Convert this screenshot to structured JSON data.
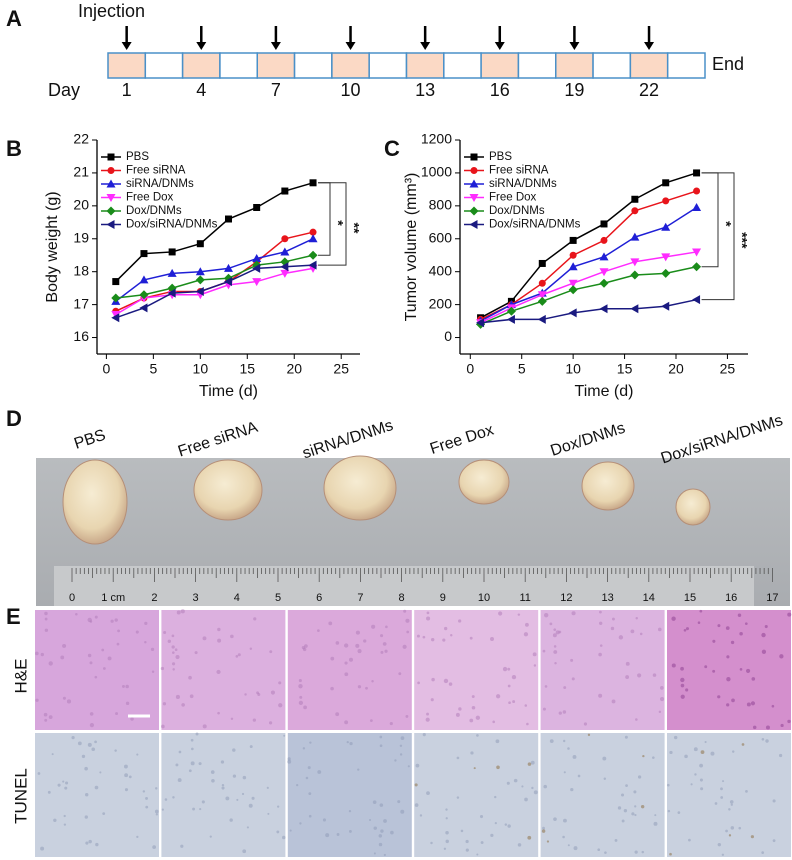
{
  "panel_labels": [
    "A",
    "B",
    "C",
    "D",
    "E"
  ],
  "timeline": {
    "injection_label": "Injection",
    "day_label": "Day",
    "end_label": "End",
    "days": [
      1,
      4,
      7,
      10,
      13,
      16,
      19,
      22
    ]
  },
  "chart_data": [
    {
      "type": "line",
      "x_label": "Time (d)",
      "y_label": "Body weight (g)",
      "x": [
        1,
        4,
        7,
        10,
        13,
        16,
        19,
        22
      ],
      "xlim": [
        -1,
        27
      ],
      "xticks": [
        0,
        5,
        10,
        15,
        20,
        25
      ],
      "ylim": [
        15.5,
        22
      ],
      "yticks": [
        16,
        17,
        18,
        19,
        20,
        21,
        22
      ],
      "annotations": [
        "*",
        "**"
      ],
      "series": [
        {
          "name": "PBS",
          "color": "#000000",
          "marker": "square",
          "values": [
            17.7,
            18.55,
            18.6,
            18.85,
            19.6,
            19.95,
            20.45,
            20.7
          ]
        },
        {
          "name": "Free siRNA",
          "color": "#e8141b",
          "marker": "circle",
          "values": [
            16.8,
            17.2,
            17.4,
            17.4,
            17.7,
            18.3,
            19.0,
            19.2
          ]
        },
        {
          "name": "siRNA/DNMs",
          "color": "#1f1fd6",
          "marker": "triangle-up",
          "values": [
            17.1,
            17.75,
            17.95,
            18.0,
            18.1,
            18.4,
            18.6,
            19.0
          ]
        },
        {
          "name": "Free Dox",
          "color": "#ff2bff",
          "marker": "triangle-down",
          "values": [
            16.7,
            17.2,
            17.3,
            17.3,
            17.6,
            17.7,
            17.95,
            18.1
          ]
        },
        {
          "name": "Dox/DNMs",
          "color": "#1a8c1a",
          "marker": "diamond",
          "values": [
            17.2,
            17.3,
            17.5,
            17.75,
            17.8,
            18.2,
            18.3,
            18.5
          ]
        },
        {
          "name": "Dox/siRNA/DNMs",
          "color": "#1a1a80",
          "marker": "triangle-left",
          "values": [
            16.6,
            16.9,
            17.35,
            17.4,
            17.7,
            18.1,
            18.15,
            18.2
          ]
        }
      ]
    },
    {
      "type": "line",
      "x_label": "Time (d)",
      "y_label": "Tumor volume (mm³)",
      "x": [
        1,
        4,
        7,
        10,
        13,
        16,
        19,
        22
      ],
      "xlim": [
        -1,
        27
      ],
      "xticks": [
        0,
        5,
        10,
        15,
        20,
        25
      ],
      "ylim": [
        -100,
        1200
      ],
      "yticks": [
        0,
        200,
        400,
        600,
        800,
        1000,
        1200
      ],
      "annotations": [
        "*",
        "***"
      ],
      "series": [
        {
          "name": "PBS",
          "color": "#000000",
          "marker": "square",
          "values": [
            120,
            220,
            450,
            590,
            690,
            840,
            940,
            1000
          ]
        },
        {
          "name": "Free siRNA",
          "color": "#e8141b",
          "marker": "circle",
          "values": [
            110,
            200,
            330,
            500,
            590,
            770,
            830,
            890
          ]
        },
        {
          "name": "siRNA/DNMs",
          "color": "#1f1fd6",
          "marker": "triangle-up",
          "values": [
            100,
            200,
            270,
            430,
            490,
            610,
            670,
            790
          ]
        },
        {
          "name": "Free Dox",
          "color": "#ff2bff",
          "marker": "triangle-down",
          "values": [
            90,
            180,
            260,
            330,
            400,
            460,
            490,
            520
          ]
        },
        {
          "name": "Dox/DNMs",
          "color": "#1a8c1a",
          "marker": "diamond",
          "values": [
            80,
            160,
            220,
            290,
            330,
            380,
            390,
            430
          ]
        },
        {
          "name": "Dox/siRNA/DNMs",
          "color": "#1a1a80",
          "marker": "triangle-left",
          "values": [
            90,
            110,
            110,
            150,
            175,
            175,
            190,
            230
          ]
        }
      ]
    }
  ],
  "photo": {
    "labels": [
      "PBS",
      "Free siRNA",
      "siRNA/DNMs",
      "Free Dox",
      "Dox/DNMs",
      "Dox/siRNA/DNMs"
    ],
    "ruler_labels": [
      "0",
      "1 cm",
      "2",
      "3",
      "4",
      "5",
      "6",
      "7",
      "8",
      "9",
      "10",
      "11",
      "12",
      "13",
      "14",
      "15",
      "16",
      "17"
    ]
  },
  "histology": {
    "row_labels": [
      "H&E",
      "TUNEL"
    ]
  }
}
